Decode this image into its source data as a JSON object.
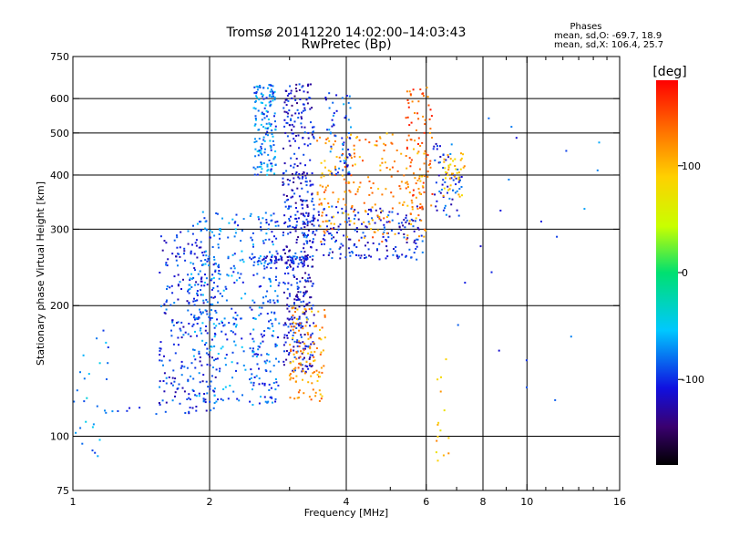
{
  "chart_data": {
    "type": "scatter",
    "title": "Tromsø 20141220 14:02:00–14:03:43",
    "subtitle": "RwPretec (Bp)",
    "xlabel": "Frequency [MHz]",
    "ylabel": "Stationary phase Virtual Height [km]",
    "x_scale": "log",
    "y_scale": "log",
    "xlim": [
      1,
      16
    ],
    "ylim": [
      75,
      750
    ],
    "x_ticks": [
      1,
      2,
      4,
      6,
      8,
      10,
      16
    ],
    "x_tick_labels": [
      "1",
      "2",
      "4",
      "6",
      "8",
      "10",
      "16"
    ],
    "x_minor_ticks": [
      3,
      5,
      7,
      9,
      11,
      12,
      13,
      14,
      15
    ],
    "y_ticks": [
      75,
      100,
      200,
      300,
      400,
      500,
      600,
      750
    ],
    "y_tick_labels": [
      "75",
      "100",
      "200",
      "300",
      "400",
      "500",
      "600",
      "750"
    ],
    "grid": true,
    "stats_box": {
      "title": "Phases",
      "line1": "mean, sd,O: -69.7, 18.9",
      "line2": "mean, sd,X: 106.4, 25.7"
    },
    "colorbar": {
      "label": "[deg]",
      "range": [
        -180,
        180
      ],
      "ticks": [
        100,
        0,
        -100
      ],
      "tick_labels": [
        "100",
        "0",
        "-100"
      ],
      "colormap": "rainbow"
    },
    "series": [
      {
        "traces": [
          {
            "f0": 1.0,
            "f1": 2.05,
            "h0": 112,
            "h1": 118,
            "n": 20,
            "phase": -95
          },
          {
            "f0": 1.55,
            "f1": 2.1,
            "h0": 118,
            "h1": 300,
            "n": 250,
            "phase": -100
          },
          {
            "f0": 1.8,
            "f1": 2.4,
            "h0": 120,
            "h1": 330,
            "n": 220,
            "phase": -80
          },
          {
            "f0": 2.45,
            "f1": 2.85,
            "h0": 118,
            "h1": 330,
            "n": 200,
            "phase": -85
          },
          {
            "f0": 2.5,
            "f1": 2.8,
            "h0": 400,
            "h1": 650,
            "n": 160,
            "phase": -75
          },
          {
            "f0": 2.55,
            "f1": 3.3,
            "h0": 250,
            "h1": 260,
            "n": 60,
            "phase": -105
          },
          {
            "f0": 2.9,
            "f1": 3.4,
            "h0": 140,
            "h1": 650,
            "n": 450,
            "phase": -110
          },
          {
            "f0": 3.2,
            "f1": 5.9,
            "h0": 255,
            "h1": 340,
            "n": 220,
            "phase": -105
          },
          {
            "f0": 3.0,
            "f1": 3.6,
            "h0": 120,
            "h1": 200,
            "n": 120,
            "phase": 115
          },
          {
            "f0": 3.45,
            "f1": 6.0,
            "h0": 280,
            "h1": 500,
            "n": 220,
            "phase": 120
          },
          {
            "f0": 5.4,
            "f1": 6.2,
            "h0": 330,
            "h1": 640,
            "n": 80,
            "phase": 140
          },
          {
            "f0": 3.6,
            "f1": 4.1,
            "h0": 400,
            "h1": 620,
            "n": 60,
            "phase": -90
          },
          {
            "f0": 6.2,
            "f1": 7.2,
            "h0": 320,
            "h1": 480,
            "n": 60,
            "phase": -100
          },
          {
            "f0": 6.5,
            "f1": 7.3,
            "h0": 350,
            "h1": 450,
            "n": 40,
            "phase": 95
          },
          {
            "f0": 1.0,
            "f1": 1.2,
            "h0": 90,
            "h1": 225,
            "n": 25,
            "phase": -70
          },
          {
            "f0": 6.3,
            "f1": 7.0,
            "h0": 85,
            "h1": 160,
            "n": 15,
            "phase": 95
          },
          {
            "f0": 7.0,
            "f1": 15.0,
            "h0": 110,
            "h1": 640,
            "n": 20,
            "phase": -85
          }
        ]
      }
    ]
  }
}
